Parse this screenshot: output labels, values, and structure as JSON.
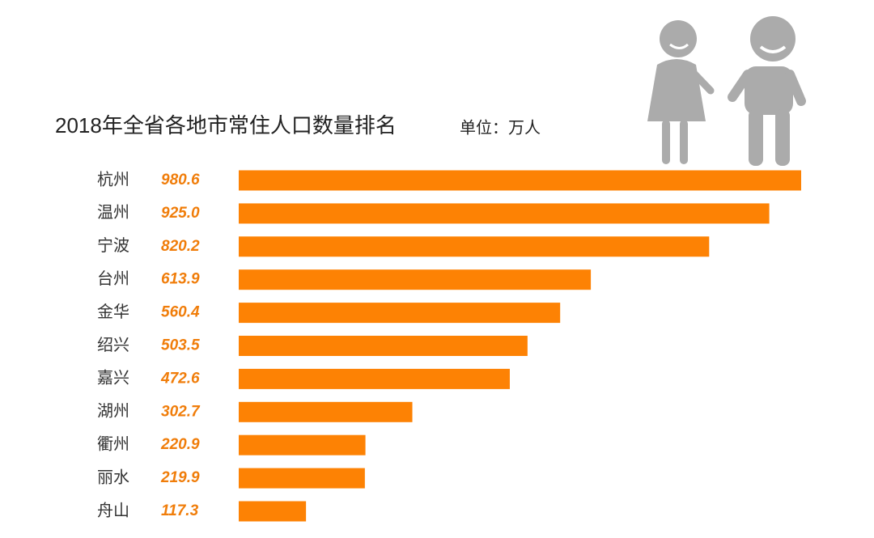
{
  "chart_data": {
    "type": "bar",
    "orientation": "horizontal",
    "title": "2018年全省各地市常住人口数量排名",
    "subtitle": "单位：万人",
    "categories": [
      "杭州",
      "温州",
      "宁波",
      "台州",
      "金华",
      "绍兴",
      "嘉兴",
      "湖州",
      "衢州",
      "丽水",
      "舟山"
    ],
    "values": [
      980.6,
      925.0,
      820.2,
      613.9,
      560.4,
      503.5,
      472.6,
      302.7,
      220.9,
      219.9,
      117.3
    ],
    "value_labels": [
      "980.6",
      "925.0",
      "820.2",
      "613.9",
      "560.4",
      "503.5",
      "472.6",
      "302.7",
      "220.9",
      "219.9",
      "117.3"
    ],
    "color": "#fd8204"
  }
}
